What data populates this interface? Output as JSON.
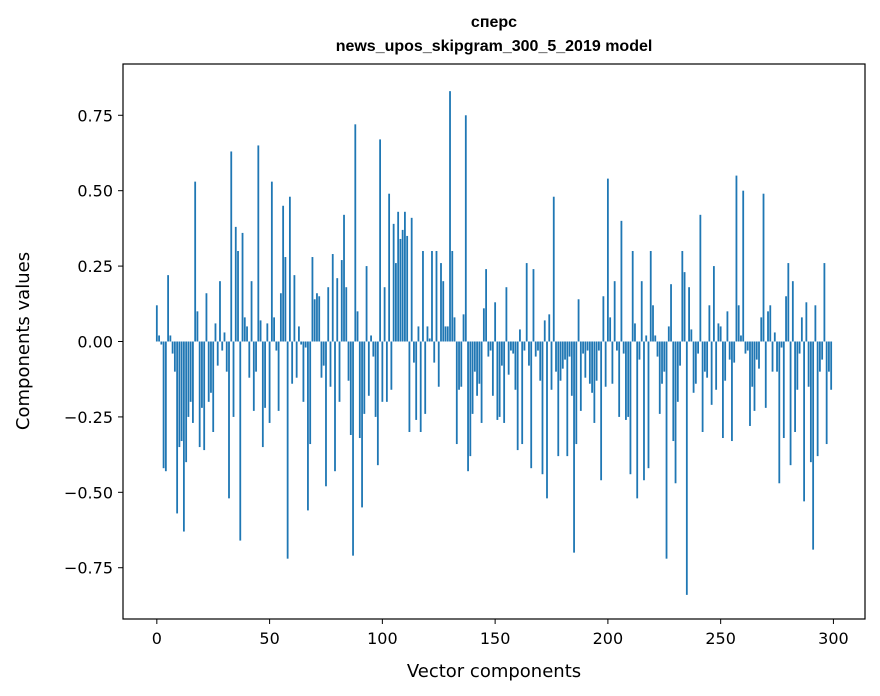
{
  "chart_data": {
    "type": "bar",
    "title_line1": "спepc",
    "title_line2": "news_upos_skipgram_300_5_2019 model",
    "xlabel": "Vector components",
    "ylabel": "Components values",
    "xlim": [
      -15,
      314
    ],
    "ylim": [
      -0.92,
      0.92
    ],
    "xticks": [
      0,
      50,
      100,
      150,
      200,
      250,
      300
    ],
    "yticks": [
      -0.75,
      -0.5,
      -0.25,
      0.0,
      0.25,
      0.5,
      0.75
    ],
    "ytick_labels": [
      "−0.75",
      "−0.50",
      "−0.25",
      "0.00",
      "0.25",
      "0.50",
      "0.75"
    ],
    "bar_color": "#1f77b4",
    "values": [
      0.12,
      0.02,
      -0.01,
      -0.42,
      -0.43,
      0.22,
      0.02,
      -0.04,
      -0.1,
      -0.57,
      -0.35,
      -0.33,
      -0.63,
      -0.4,
      -0.25,
      -0.2,
      -0.27,
      0.53,
      0.1,
      -0.35,
      -0.22,
      -0.36,
      0.16,
      -0.2,
      -0.17,
      -0.3,
      0.06,
      -0.08,
      0.2,
      -0.03,
      0.03,
      -0.1,
      -0.52,
      0.63,
      -0.25,
      0.38,
      0.3,
      -0.66,
      0.36,
      0.08,
      0.05,
      -0.12,
      0.2,
      -0.23,
      -0.1,
      0.65,
      0.07,
      -0.35,
      -0.22,
      0.06,
      -0.27,
      0.53,
      0.08,
      -0.03,
      -0.23,
      0.16,
      0.45,
      0.28,
      -0.72,
      0.48,
      -0.14,
      0.22,
      -0.12,
      0.05,
      -0.01,
      -0.2,
      -0.02,
      -0.56,
      -0.34,
      0.28,
      0.14,
      0.16,
      0.15,
      -0.12,
      -0.08,
      -0.48,
      0.18,
      -0.15,
      0.29,
      -0.43,
      0.21,
      -0.2,
      0.27,
      0.42,
      0.18,
      -0.13,
      -0.31,
      -0.71,
      0.72,
      0.1,
      -0.32,
      -0.55,
      -0.24,
      0.25,
      -0.18,
      0.02,
      -0.05,
      -0.25,
      -0.41,
      0.67,
      -0.2,
      0.18,
      -0.2,
      0.49,
      -0.16,
      0.39,
      0.26,
      0.43,
      0.34,
      0.37,
      0.43,
      0.35,
      -0.3,
      0.41,
      -0.07,
      -0.26,
      0.05,
      -0.3,
      0.3,
      -0.24,
      0.05,
      0.01,
      0.3,
      -0.07,
      0.3,
      -0.15,
      0.26,
      0.2,
      0.05,
      0.05,
      0.83,
      0.3,
      0.08,
      -0.34,
      -0.16,
      -0.15,
      0.09,
      0.75,
      -0.43,
      -0.38,
      -0.24,
      -0.1,
      -0.18,
      -0.14,
      -0.27,
      0.11,
      0.24,
      -0.05,
      -0.03,
      -0.18,
      0.13,
      -0.26,
      -0.25,
      -0.08,
      -0.27,
      0.18,
      -0.11,
      -0.03,
      -0.04,
      -0.16,
      -0.36,
      0.04,
      -0.34,
      -0.03,
      0.26,
      -0.08,
      -0.42,
      0.24,
      -0.05,
      -0.03,
      -0.13,
      -0.44,
      0.07,
      -0.52,
      0.09,
      -0.16,
      0.48,
      -0.1,
      -0.38,
      -0.13,
      -0.09,
      -0.06,
      -0.38,
      -0.05,
      -0.18,
      -0.7,
      -0.34,
      0.14,
      -0.23,
      -0.04,
      -0.12,
      -0.03,
      -0.14,
      -0.17,
      -0.27,
      -0.13,
      -0.03,
      -0.46,
      0.15,
      -0.15,
      0.54,
      0.08,
      -0.14,
      0.2,
      -0.03,
      -0.25,
      0.4,
      -0.04,
      -0.26,
      -0.25,
      -0.44,
      0.3,
      0.06,
      -0.52,
      -0.06,
      0.2,
      -0.46,
      0.02,
      -0.42,
      0.3,
      0.12,
      0.02,
      -0.05,
      -0.24,
      -0.14,
      -0.1,
      -0.72,
      0.05,
      0.19,
      -0.33,
      -0.47,
      -0.2,
      -0.08,
      0.3,
      0.23,
      -0.84,
      0.18,
      0.04,
      -0.17,
      -0.14,
      -0.04,
      0.42,
      -0.3,
      -0.1,
      -0.12,
      0.12,
      -0.21,
      0.25,
      -0.16,
      0.06,
      0.05,
      -0.32,
      -0.13,
      0.1,
      -0.06,
      -0.33,
      -0.07,
      0.55,
      0.12,
      0.02,
      0.5,
      -0.04,
      -0.03,
      -0.28,
      -0.15,
      -0.23,
      -0.06,
      -0.09,
      0.08,
      0.49,
      -0.22,
      0.1,
      0.12,
      -0.1,
      0.03,
      -0.1,
      -0.47,
      -0.02,
      -0.32,
      0.15,
      0.26,
      -0.41,
      0.2,
      -0.3,
      -0.16,
      -0.04,
      0.08,
      -0.53,
      0.13,
      -0.15,
      -0.4,
      -0.69,
      0.12,
      -0.38,
      -0.1,
      -0.06,
      0.26,
      -0.34,
      -0.1,
      -0.16
    ]
  }
}
